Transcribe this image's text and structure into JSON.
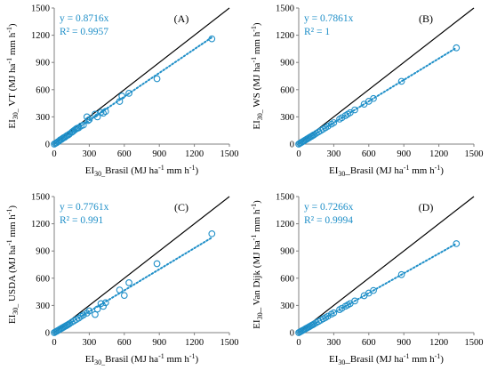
{
  "figure": {
    "colors": {
      "accent": "#1f8fc8",
      "axis": "#808080",
      "identity": "#000000"
    }
  },
  "chart_data": [
    {
      "type": "scatter",
      "panel": "(A)",
      "xlabel": {
        "main": "EI",
        "sub": "30_",
        "rest": "Brasil (MJ ha",
        "sup1": "-1",
        "mid": " mm h",
        "sup2": "-1",
        "end": ")"
      },
      "ylabel": {
        "main": "EI",
        "sub": "30_",
        "rest": " VT (MJ ha",
        "sup1": "-1",
        "mid": " mm h",
        "sup2": "-1",
        "end": ")"
      },
      "equation": "y = 0.8716x",
      "r2_label": "R² = 0.9957",
      "xlim": [
        0,
        1500
      ],
      "ylim": [
        0,
        1500
      ],
      "xticks": [
        0,
        300,
        600,
        900,
        1200,
        1500
      ],
      "yticks": [
        0,
        300,
        600,
        900,
        1200,
        1500
      ],
      "slope": 0.8716,
      "points": [
        [
          0,
          0
        ],
        [
          10,
          8
        ],
        [
          20,
          15
        ],
        [
          30,
          25
        ],
        [
          40,
          32
        ],
        [
          50,
          45
        ],
        [
          60,
          50
        ],
        [
          70,
          60
        ],
        [
          80,
          70
        ],
        [
          90,
          75
        ],
        [
          100,
          85
        ],
        [
          110,
          95
        ],
        [
          120,
          100
        ],
        [
          130,
          110
        ],
        [
          150,
          130
        ],
        [
          160,
          140
        ],
        [
          170,
          150
        ],
        [
          180,
          160
        ],
        [
          190,
          170
        ],
        [
          200,
          175
        ],
        [
          210,
          180
        ],
        [
          230,
          200
        ],
        [
          250,
          210
        ],
        [
          280,
          300
        ],
        [
          290,
          260
        ],
        [
          300,
          270
        ],
        [
          350,
          330
        ],
        [
          370,
          300
        ],
        [
          400,
          350
        ],
        [
          420,
          340
        ],
        [
          440,
          360
        ],
        [
          560,
          470
        ],
        [
          580,
          530
        ],
        [
          640,
          560
        ],
        [
          880,
          720
        ],
        [
          1350,
          1160
        ]
      ]
    },
    {
      "type": "scatter",
      "panel": "(B)",
      "xlabel": {
        "main": "EI",
        "sub": "30",
        "rest": "_Brasil (MJ ha",
        "sup1": "-1",
        "mid": " mm h",
        "sup2": "-1",
        "end": ")"
      },
      "ylabel": {
        "main": "EI",
        "sub": "30_",
        "rest": " WS (MJ ha",
        "sup1": "-1",
        "mid": " mm h",
        "sup2": "-1",
        "end": ")"
      },
      "equation": "y = 0.7861x",
      "r2_label": "R² = 1",
      "xlim": [
        0,
        1500
      ],
      "ylim": [
        0,
        1500
      ],
      "xticks": [
        0,
        300,
        600,
        900,
        1200,
        1500
      ],
      "yticks": [
        0,
        300,
        600,
        900,
        1200,
        1500
      ],
      "slope": 0.7861,
      "points": [
        [
          0,
          0
        ],
        [
          10,
          8
        ],
        [
          20,
          16
        ],
        [
          30,
          24
        ],
        [
          40,
          31
        ],
        [
          50,
          39
        ],
        [
          60,
          47
        ],
        [
          70,
          55
        ],
        [
          80,
          63
        ],
        [
          90,
          71
        ],
        [
          100,
          79
        ],
        [
          110,
          86
        ],
        [
          120,
          94
        ],
        [
          130,
          102
        ],
        [
          150,
          118
        ],
        [
          170,
          134
        ],
        [
          190,
          149
        ],
        [
          210,
          165
        ],
        [
          230,
          181
        ],
        [
          250,
          197
        ],
        [
          280,
          220
        ],
        [
          300,
          236
        ],
        [
          350,
          275
        ],
        [
          370,
          291
        ],
        [
          400,
          314
        ],
        [
          420,
          330
        ],
        [
          440,
          346
        ],
        [
          480,
          377
        ],
        [
          560,
          440
        ],
        [
          600,
          472
        ],
        [
          640,
          503
        ],
        [
          880,
          692
        ],
        [
          1350,
          1061
        ]
      ]
    },
    {
      "type": "scatter",
      "panel": "(C)",
      "xlabel": {
        "main": "EI",
        "sub": "30_",
        "rest": "Brasil (MJ ha",
        "sup1": "-1",
        "mid": " mm h",
        "sup2": "-1",
        "end": ")"
      },
      "ylabel": {
        "main": "EI",
        "sub": "30_",
        "rest": " USDA (MJ ha",
        "sup1": "-1",
        "mid": " mm h",
        "sup2": "-1",
        "end": ")"
      },
      "equation": "y = 0.7761x",
      "r2_label": "R² = 0.991",
      "xlim": [
        0,
        1500
      ],
      "ylim": [
        0,
        1500
      ],
      "xticks": [
        0,
        300,
        600,
        900,
        1200,
        1500
      ],
      "yticks": [
        0,
        300,
        600,
        900,
        1200,
        1500
      ],
      "slope": 0.7761,
      "points": [
        [
          0,
          0
        ],
        [
          10,
          8
        ],
        [
          20,
          15
        ],
        [
          30,
          22
        ],
        [
          40,
          30
        ],
        [
          50,
          38
        ],
        [
          60,
          45
        ],
        [
          70,
          53
        ],
        [
          80,
          60
        ],
        [
          90,
          68
        ],
        [
          100,
          75
        ],
        [
          110,
          82
        ],
        [
          120,
          90
        ],
        [
          130,
          98
        ],
        [
          150,
          115
        ],
        [
          170,
          130
        ],
        [
          190,
          145
        ],
        [
          210,
          160
        ],
        [
          230,
          180
        ],
        [
          250,
          195
        ],
        [
          280,
          215
        ],
        [
          300,
          240
        ],
        [
          350,
          200
        ],
        [
          370,
          260
        ],
        [
          400,
          320
        ],
        [
          420,
          290
        ],
        [
          440,
          330
        ],
        [
          560,
          470
        ],
        [
          600,
          410
        ],
        [
          640,
          550
        ],
        [
          880,
          760
        ],
        [
          1350,
          1090
        ]
      ]
    },
    {
      "type": "scatter",
      "panel": "(D)",
      "xlabel": {
        "main": "EI",
        "sub": "30",
        "rest": "_Brasil (MJ ha",
        "sup1": "-1",
        "mid": " mm h",
        "sup2": "-1",
        "end": ")"
      },
      "ylabel": {
        "main": "EI",
        "sub": "30",
        "rest": "_ Van Dijk (MJ ha",
        "sup1": "-1",
        "mid": " mm h",
        "sup2": "-1",
        "end": ")"
      },
      "equation": "y = 0.7266x",
      "r2_label": "R² = 0.9994",
      "xlim": [
        0,
        1500
      ],
      "ylim": [
        0,
        1500
      ],
      "xticks": [
        0,
        300,
        600,
        900,
        1200,
        1500
      ],
      "yticks": [
        0,
        300,
        600,
        900,
        1200,
        1500
      ],
      "slope": 0.7266,
      "points": [
        [
          0,
          0
        ],
        [
          10,
          7
        ],
        [
          20,
          15
        ],
        [
          30,
          22
        ],
        [
          40,
          29
        ],
        [
          50,
          36
        ],
        [
          60,
          44
        ],
        [
          70,
          51
        ],
        [
          80,
          58
        ],
        [
          90,
          65
        ],
        [
          100,
          73
        ],
        [
          110,
          80
        ],
        [
          120,
          87
        ],
        [
          130,
          94
        ],
        [
          150,
          109
        ],
        [
          170,
          124
        ],
        [
          190,
          138
        ],
        [
          210,
          153
        ],
        [
          230,
          167
        ],
        [
          250,
          182
        ],
        [
          280,
          204
        ],
        [
          300,
          218
        ],
        [
          350,
          254
        ],
        [
          370,
          269
        ],
        [
          400,
          291
        ],
        [
          420,
          305
        ],
        [
          440,
          320
        ],
        [
          480,
          349
        ],
        [
          560,
          407
        ],
        [
          600,
          436
        ],
        [
          640,
          465
        ],
        [
          880,
          640
        ],
        [
          1350,
          981
        ]
      ]
    }
  ]
}
